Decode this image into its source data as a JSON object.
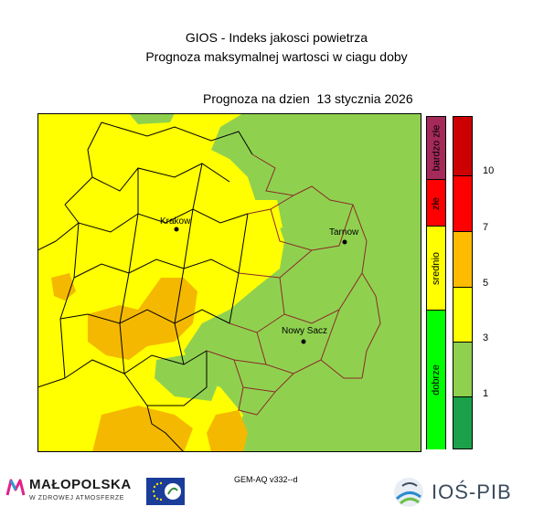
{
  "header": {
    "title_line1": "GIOS - Indeks jakosci powietrza",
    "title_line2": "Prognoza maksymalnej wartosci w ciagu doby",
    "date_line": "Prognoza na dzien  13 stycznia 2026"
  },
  "map": {
    "cities": [
      {
        "name": "Krakow"
      },
      {
        "name": "Tarnow"
      },
      {
        "name": "Nowy Sacz"
      }
    ]
  },
  "legend": {
    "bands": [
      {
        "label": "bardzo złe",
        "color": "#a52a5a"
      },
      {
        "label": "złe",
        "color": "#ff0000"
      },
      {
        "label": "srednio",
        "color": "#ffff00"
      },
      {
        "label": "dobrze",
        "color": "#00ff00"
      }
    ],
    "scale": [
      {
        "color": "#cc0000"
      },
      {
        "color": "#ff0000"
      },
      {
        "color": "#ffbb00"
      },
      {
        "color": "#ffff00"
      },
      {
        "color": "#8fd14f"
      },
      {
        "color": "#1aa14a"
      }
    ],
    "ticks": [
      "10",
      "7",
      "5",
      "3",
      "1"
    ]
  },
  "footer": {
    "model": "GEM-AQ v332--d",
    "logo_left_name": "MAŁOPOLSKA",
    "logo_left_sub": "W ZDROWEJ ATMOSFERZE",
    "logo_right_name": "IOŚ-PIB"
  }
}
